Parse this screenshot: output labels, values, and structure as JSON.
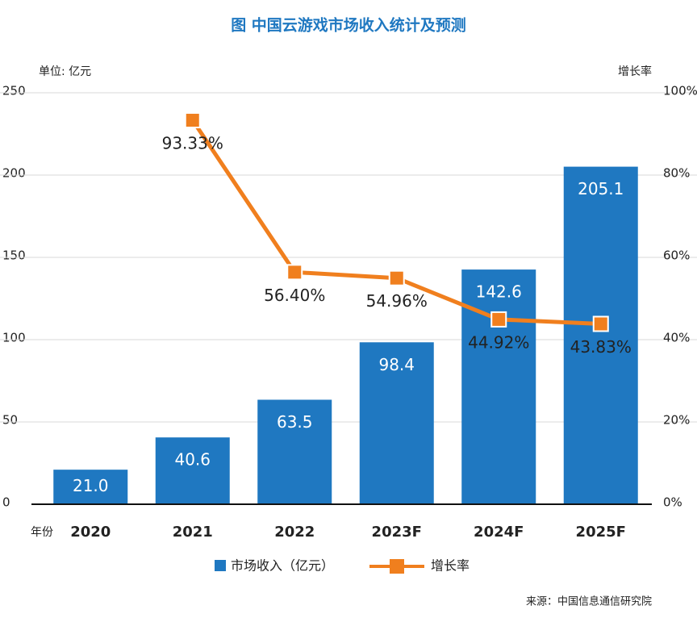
{
  "chart_data": {
    "type": "bar_line",
    "title": "图  中国云游戏市场收入统计及预测",
    "y_label": "单位: 亿元",
    "y2_label": "增长率",
    "x_label": "年份",
    "source": "来源：中国信息通信研究院",
    "categories": [
      "2020",
      "2021",
      "2022",
      "2023F",
      "2024F",
      "2025F"
    ],
    "series": [
      {
        "name": "市场收入（亿元）",
        "type": "bar",
        "color": "#1f78c1",
        "values": [
          21.0,
          40.6,
          63.5,
          98.4,
          142.6,
          205.1
        ],
        "value_labels": [
          "21.0",
          "40.6",
          "63.5",
          "98.4",
          "142.6",
          "205.1"
        ]
      },
      {
        "name": "增长率",
        "type": "line",
        "axis": "y2",
        "color": "#f07f1e",
        "values": [
          null,
          93.33,
          56.4,
          54.96,
          44.92,
          43.83
        ],
        "value_labels": [
          null,
          "93.33%",
          "56.40%",
          "54.96%",
          "44.92%",
          "43.83%"
        ]
      }
    ],
    "ylim": [
      0,
      250
    ],
    "yticks": [
      0,
      50,
      100,
      150,
      200,
      250
    ],
    "y2lim": [
      0,
      100
    ],
    "y2ticks": [
      {
        "value": 0,
        "label": "0%"
      },
      {
        "value": 20,
        "label": "20%"
      },
      {
        "value": 40,
        "label": "40%"
      },
      {
        "value": 60,
        "label": "60%"
      },
      {
        "value": 80,
        "label": "80%"
      },
      {
        "value": 100,
        "label": "100%"
      }
    ],
    "grid": true
  }
}
